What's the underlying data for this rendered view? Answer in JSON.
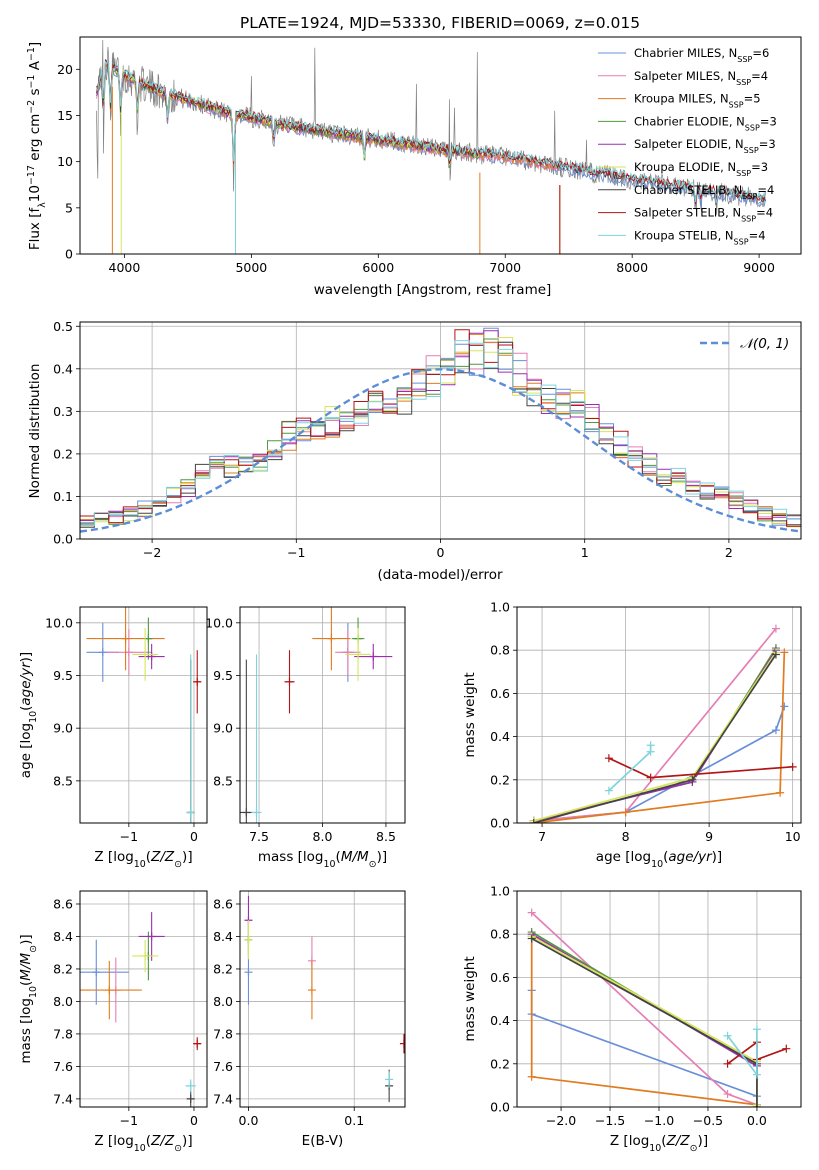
{
  "figure_title": "PLATE=1924, MJD=53330, FIBERID=0069, z=0.015",
  "colors": {
    "Chabrier MILES": "#6a8fd8",
    "Salpeter MILES": "#e57fb4",
    "Kroupa MILES": "#e07b1f",
    "Chabrier ELODIE": "#4f9a3f",
    "Salpeter ELODIE": "#9b2fb0",
    "Kroupa ELODIE": "#d5e65a",
    "Chabrier STELIB": "#444444",
    "Salpeter STELIB": "#b01616",
    "Kroupa STELIB": "#7fd3dc",
    "data": "#808080",
    "normal_curve": "#5b8ed6",
    "grid": "#b0b0b0"
  },
  "chart_data": [
    {
      "id": "spectrum",
      "type": "line",
      "title": "",
      "xlabel": "wavelength [Angstrom, rest frame]",
      "ylabel": "Flux [fλ10⁻¹⁷ erg cm⁻² s⁻¹ A⁻¹]",
      "xlim": [
        3650,
        9330
      ],
      "ylim": [
        0,
        23.5
      ],
      "xticks": [
        4000,
        5000,
        6000,
        7000,
        8000,
        9000
      ],
      "yticks": [
        0,
        5,
        10,
        15,
        20
      ],
      "grid": false,
      "legend_position": "upper right",
      "legend": [
        {
          "name": "Chabrier MILES",
          "N": 6
        },
        {
          "name": "Salpeter MILES",
          "N": 4
        },
        {
          "name": "Kroupa MILES",
          "N": 5
        },
        {
          "name": "Chabrier ELODIE",
          "N": 3
        },
        {
          "name": "Salpeter ELODIE",
          "N": 3
        },
        {
          "name": "Kroupa ELODIE",
          "N": 3
        },
        {
          "name": "Chabrier STELIB",
          "N": 4
        },
        {
          "name": "Salpeter STELIB",
          "N": 4
        },
        {
          "name": "Kroupa STELIB",
          "N": 4
        }
      ],
      "continuum_x": [
        3780,
        3850,
        3950,
        4100,
        4300,
        4600,
        4850,
        5000,
        5300,
        5600,
        6000,
        6500,
        7000,
        7500,
        8000,
        8500,
        9050
      ],
      "continuum_y": [
        17.5,
        20.5,
        19.8,
        18.6,
        17.5,
        16.2,
        15.1,
        14.8,
        13.8,
        13.2,
        12.4,
        11.3,
        10.5,
        9.3,
        8.0,
        7.0,
        5.9
      ]
    },
    {
      "id": "residuals",
      "type": "line",
      "title": "",
      "xlabel": "(data-model)/error",
      "ylabel": "Normed distribution",
      "xlim": [
        -2.5,
        2.5
      ],
      "ylim": [
        0,
        0.51
      ],
      "xticks": [
        -2,
        -1,
        0,
        1,
        2
      ],
      "yticks": [
        0.0,
        0.1,
        0.2,
        0.3,
        0.4,
        0.5
      ],
      "grid": true,
      "legend_position": "upper right",
      "curve_name": "𝒩(0, 1)",
      "bin_edges_start": -2.5,
      "bin_width": 0.1,
      "histogram_shape": [
        0.04,
        0.05,
        0.05,
        0.06,
        0.07,
        0.08,
        0.1,
        0.12,
        0.15,
        0.18,
        0.17,
        0.17,
        0.18,
        0.2,
        0.24,
        0.25,
        0.25,
        0.27,
        0.27,
        0.28,
        0.32,
        0.33,
        0.34,
        0.36,
        0.38,
        0.4,
        0.43,
        0.44,
        0.44,
        0.42,
        0.38,
        0.35,
        0.33,
        0.32,
        0.31,
        0.28,
        0.24,
        0.22,
        0.2,
        0.17,
        0.15,
        0.14,
        0.12,
        0.11,
        0.1,
        0.09,
        0.07,
        0.06,
        0.05,
        0.04
      ],
      "normal_mu": 0,
      "normal_sigma": 1
    },
    {
      "id": "age_vs_Z",
      "type": "scatter",
      "xlabel": "Z [log₁₀(Z/Z⊙)]",
      "ylabel": "age  [log₁₀(age/yr)]",
      "xlim": [
        -1.75,
        0.2
      ],
      "ylim": [
        8.1,
        10.15
      ],
      "xticks": [
        -1,
        0
      ],
      "yticks": [
        8.5,
        9.0,
        9.5,
        10.0
      ],
      "grid": true,
      "points": [
        {
          "series": "Chabrier MILES",
          "x": -1.4,
          "y": 9.72,
          "xerr": 0.25,
          "yerr": 0.28
        },
        {
          "series": "Salpeter MILES",
          "x": -1.0,
          "y": 9.72,
          "xerr": 0.35,
          "yerr": 0.22
        },
        {
          "series": "Kroupa MILES",
          "x": -1.05,
          "y": 9.85,
          "xerr": 0.6,
          "yerr": 0.3
        },
        {
          "series": "Chabrier ELODIE",
          "x": -0.7,
          "y": 9.85,
          "xerr": 0.05,
          "yerr": 0.2
        },
        {
          "series": "Salpeter ELODIE",
          "x": -0.65,
          "y": 9.68,
          "xerr": 0.2,
          "yerr": 0.12
        },
        {
          "series": "Kroupa ELODIE",
          "x": -0.75,
          "y": 9.7,
          "xerr": 0.2,
          "yerr": 0.25
        },
        {
          "series": "Chabrier STELIB",
          "x": -0.05,
          "y": 8.2,
          "xerr": 0.05,
          "yerr": 1.45
        },
        {
          "series": "Salpeter STELIB",
          "x": 0.05,
          "y": 9.44,
          "xerr": 0.06,
          "yerr": 0.3
        },
        {
          "series": "Kroupa STELIB",
          "x": -0.05,
          "y": 8.2,
          "xerr": 0.04,
          "yerr": 1.5
        }
      ]
    },
    {
      "id": "age_vs_mass",
      "type": "scatter",
      "xlabel": "mass [log₁₀(M/M⊙)]",
      "ylabel": "",
      "xlim": [
        7.35,
        8.65
      ],
      "ylim": [
        8.1,
        10.15
      ],
      "xticks": [
        7.5,
        8.0,
        8.5
      ],
      "yticks": [
        8.5,
        9.0,
        9.5,
        10.0
      ],
      "grid": true,
      "points": [
        {
          "series": "Chabrier MILES",
          "x": 8.2,
          "y": 9.72,
          "xerr": 0.05,
          "yerr": 0.28
        },
        {
          "series": "Salpeter MILES",
          "x": 8.2,
          "y": 9.72,
          "xerr": 0.1,
          "yerr": 0.22
        },
        {
          "series": "Kroupa MILES",
          "x": 8.07,
          "y": 9.85,
          "xerr": 0.15,
          "yerr": 0.3
        },
        {
          "series": "Chabrier ELODIE",
          "x": 8.28,
          "y": 9.85,
          "xerr": 0.05,
          "yerr": 0.2
        },
        {
          "series": "Salpeter ELODIE",
          "x": 8.4,
          "y": 9.68,
          "xerr": 0.15,
          "yerr": 0.12
        },
        {
          "series": "Kroupa ELODIE",
          "x": 8.28,
          "y": 9.7,
          "xerr": 0.1,
          "yerr": 0.25
        },
        {
          "series": "Chabrier STELIB",
          "x": 7.4,
          "y": 8.2,
          "xerr": 0.05,
          "yerr": 1.45
        },
        {
          "series": "Salpeter STELIB",
          "x": 7.74,
          "y": 9.44,
          "xerr": 0.04,
          "yerr": 0.3
        },
        {
          "series": "Kroupa STELIB",
          "x": 7.48,
          "y": 8.2,
          "xerr": 0.04,
          "yerr": 1.5
        }
      ]
    },
    {
      "id": "weight_vs_age",
      "type": "line",
      "xlabel": "age  [log₁₀(age/yr)]",
      "ylabel": "mass weight",
      "xlim": [
        6.7,
        10.1
      ],
      "ylim": [
        0,
        1.0
      ],
      "xticks": [
        7,
        8,
        9,
        10
      ],
      "yticks": [
        0.0,
        0.2,
        0.4,
        0.6,
        0.8,
        1.0
      ],
      "grid": true,
      "series": [
        {
          "name": "Chabrier MILES",
          "x": [
            6.9,
            8.0,
            9.8,
            9.9
          ],
          "y": [
            0.01,
            0.05,
            0.43,
            0.54
          ]
        },
        {
          "name": "Salpeter MILES",
          "x": [
            6.9,
            8.0,
            9.8
          ],
          "y": [
            0.01,
            0.05,
            0.9
          ]
        },
        {
          "name": "Kroupa MILES",
          "x": [
            6.9,
            8.0,
            9.85,
            9.9
          ],
          "y": [
            0.0,
            0.05,
            0.14,
            0.79
          ]
        },
        {
          "name": "Chabrier ELODIE",
          "x": [
            6.9,
            8.8,
            9.8
          ],
          "y": [
            0.01,
            0.19,
            0.81
          ]
        },
        {
          "name": "Salpeter ELODIE",
          "x": [
            6.9,
            8.8,
            9.8
          ],
          "y": [
            0.01,
            0.19,
            0.8
          ]
        },
        {
          "name": "Kroupa ELODIE",
          "x": [
            6.9,
            8.8,
            9.8
          ],
          "y": [
            0.01,
            0.21,
            0.79
          ]
        },
        {
          "name": "Chabrier STELIB",
          "x": [
            6.9,
            8.8,
            9.8
          ],
          "y": [
            0.0,
            0.2,
            0.78
          ]
        },
        {
          "name": "Salpeter STELIB",
          "x": [
            7.8,
            8.3,
            10.0
          ],
          "y": [
            0.3,
            0.21,
            0.26
          ]
        },
        {
          "name": "Kroupa STELIB",
          "x": [
            7.8,
            8.3,
            8.3
          ],
          "y": [
            0.15,
            0.33,
            0.36
          ]
        }
      ]
    },
    {
      "id": "mass_vs_Z",
      "type": "scatter",
      "xlabel": "Z [log₁₀(Z/Z⊙)]",
      "ylabel": "mass [log₁₀(M/M⊙)]",
      "xlim": [
        -1.75,
        0.2
      ],
      "ylim": [
        7.35,
        8.68
      ],
      "xticks": [
        -1,
        0
      ],
      "yticks": [
        7.4,
        7.6,
        7.8,
        8.0,
        8.2,
        8.4,
        8.6
      ],
      "grid": true,
      "points": [
        {
          "series": "Chabrier MILES",
          "x": -1.5,
          "y": 8.18,
          "xerr": 0.5,
          "yerr": 0.2
        },
        {
          "series": "Salpeter MILES",
          "x": -1.2,
          "y": 8.07,
          "xerr": 0.1,
          "yerr": 0.2
        },
        {
          "series": "Kroupa MILES",
          "x": -1.3,
          "y": 8.07,
          "xerr": 0.5,
          "yerr": 0.18
        },
        {
          "series": "Chabrier ELODIE",
          "x": -0.7,
          "y": 8.28,
          "xerr": 0.05,
          "yerr": 0.15
        },
        {
          "series": "Salpeter ELODIE",
          "x": -0.65,
          "y": 8.4,
          "xerr": 0.2,
          "yerr": 0.15
        },
        {
          "series": "Kroupa ELODIE",
          "x": -0.75,
          "y": 8.28,
          "xerr": 0.2,
          "yerr": 0.1
        },
        {
          "series": "Chabrier STELIB",
          "x": -0.05,
          "y": 7.4,
          "xerr": 0.05,
          "yerr": 0.05
        },
        {
          "series": "Salpeter STELIB",
          "x": 0.05,
          "y": 7.74,
          "xerr": 0.06,
          "yerr": 0.04
        },
        {
          "series": "Kroupa STELIB",
          "x": -0.05,
          "y": 7.48,
          "xerr": 0.08,
          "yerr": 0.04
        }
      ]
    },
    {
      "id": "mass_vs_ebv",
      "type": "scatter",
      "xlabel": "E(B-V)",
      "ylabel": "",
      "xlim": [
        -0.008,
        0.148
      ],
      "ylim": [
        7.35,
        8.68
      ],
      "xticks": [
        0.0,
        0.1
      ],
      "yticks": [
        7.4,
        7.6,
        7.8,
        8.0,
        8.2,
        8.4,
        8.6
      ],
      "grid": true,
      "points": [
        {
          "series": "Chabrier MILES",
          "x": 0.0,
          "y": 8.18,
          "yerr": 0.2
        },
        {
          "series": "Salpeter MILES",
          "x": 0.06,
          "y": 8.25,
          "yerr": 0.15
        },
        {
          "series": "Kroupa MILES",
          "x": 0.06,
          "y": 8.07,
          "yerr": 0.18
        },
        {
          "series": "Chabrier ELODIE",
          "x": 0.0,
          "y": 8.38,
          "yerr": 0.1
        },
        {
          "series": "Salpeter ELODIE",
          "x": 0.0,
          "y": 8.5,
          "yerr": 0.15
        },
        {
          "series": "Kroupa ELODIE",
          "x": 0.0,
          "y": 8.38,
          "yerr": 0.12
        },
        {
          "series": "Chabrier STELIB",
          "x": 0.133,
          "y": 7.48,
          "yerr": 0.1
        },
        {
          "series": "Salpeter STELIB",
          "x": 0.147,
          "y": 7.74,
          "yerr": 0.06
        },
        {
          "series": "Kroupa STELIB",
          "x": 0.133,
          "y": 7.52,
          "yerr": 0.05
        }
      ]
    },
    {
      "id": "weight_vs_Z",
      "type": "line",
      "xlabel": "Z [log₁₀(Z/Z⊙)]",
      "ylabel": "mass weight",
      "xlim": [
        -2.45,
        0.45
      ],
      "ylim": [
        0,
        1.0
      ],
      "xticks": [
        -2.0,
        -1.5,
        -1.0,
        -0.5,
        0.0
      ],
      "yticks": [
        0.0,
        0.2,
        0.4,
        0.6,
        0.8,
        1.0
      ],
      "grid": true,
      "series": [
        {
          "name": "Chabrier MILES",
          "x": [
            -2.3,
            -2.3,
            0.0,
            0.0
          ],
          "y": [
            0.54,
            0.43,
            0.05,
            0.01
          ]
        },
        {
          "name": "Salpeter MILES",
          "x": [
            -2.3,
            -0.3,
            0.0
          ],
          "y": [
            0.9,
            0.06,
            0.01
          ]
        },
        {
          "name": "Kroupa MILES",
          "x": [
            -2.3,
            -2.3,
            0.0,
            0.0
          ],
          "y": [
            0.79,
            0.14,
            0.01,
            0.0
          ]
        },
        {
          "name": "Chabrier ELODIE",
          "x": [
            -2.3,
            0.0,
            0.0
          ],
          "y": [
            0.81,
            0.19,
            0.01
          ]
        },
        {
          "name": "Salpeter ELODIE",
          "x": [
            -2.3,
            0.0,
            0.0
          ],
          "y": [
            0.8,
            0.19,
            0.01
          ]
        },
        {
          "name": "Kroupa ELODIE",
          "x": [
            -2.3,
            0.0,
            0.0
          ],
          "y": [
            0.79,
            0.21,
            0.01
          ]
        },
        {
          "name": "Chabrier STELIB",
          "x": [
            -2.3,
            0.0,
            0.0
          ],
          "y": [
            0.78,
            0.2,
            0.0
          ]
        },
        {
          "name": "Salpeter STELIB",
          "x": [
            -0.3,
            0.0,
            0.0,
            0.3
          ],
          "y": [
            0.2,
            0.3,
            0.22,
            0.27
          ]
        },
        {
          "name": "Kroupa STELIB",
          "x": [
            -0.3,
            0.0,
            0.0
          ],
          "y": [
            0.33,
            0.15,
            0.36
          ]
        }
      ]
    }
  ]
}
